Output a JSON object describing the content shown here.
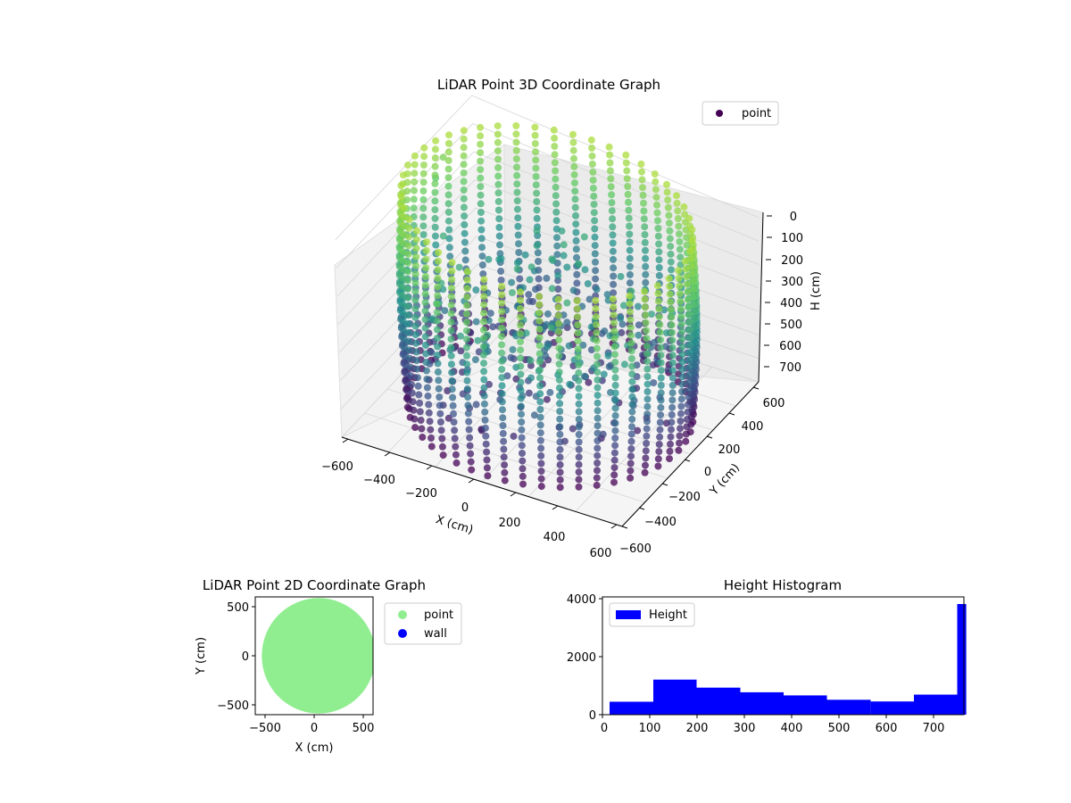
{
  "chart_data": [
    {
      "type": "scatter",
      "title": "LiDAR Point 3D Coordinate Graph",
      "xlabel": "X (cm)",
      "ylabel": "Y (cm)",
      "zlabel": "H (cm)",
      "xlim": [
        -600,
        600
      ],
      "ylim": [
        -600,
        600
      ],
      "zlim": [
        0,
        760
      ],
      "z_inverted": true,
      "xticks": [
        "−600",
        "−400",
        "−200",
        "0",
        "200",
        "400",
        "600"
      ],
      "yticks": [
        "−600",
        "−400",
        "−200",
        "0",
        "200",
        "400",
        "600"
      ],
      "zticks": [
        "0",
        "100",
        "200",
        "300",
        "400",
        "500",
        "600",
        "700"
      ],
      "colormap": "viridis",
      "legend": {
        "position": "upper-right",
        "entries": [
          {
            "name": "point",
            "color": "#440154"
          }
        ]
      },
      "grid": true,
      "structure": {
        "wall_radius": 550,
        "wall_height": 760,
        "columns": 48,
        "levels": 24,
        "outliers": [
          {
            "x": -590,
            "y": 250,
            "h": 560
          },
          {
            "x": -560,
            "y": 260,
            "h": 640
          }
        ]
      }
    },
    {
      "type": "scatter",
      "title": "LiDAR Point 2D Coordinate Graph",
      "xlabel": "X (cm)",
      "ylabel": "Y (cm)",
      "xlim": [
        -600,
        600
      ],
      "ylim": [
        -600,
        600
      ],
      "xticks": [
        "−500",
        "0",
        "500"
      ],
      "yticks": [
        "500",
        "0",
        "−500"
      ],
      "legend": {
        "position": "outside-right",
        "entries": [
          {
            "name": "point",
            "color": "#90ee90"
          },
          {
            "name": "wall",
            "color": "#0000ff"
          }
        ]
      },
      "series": [
        {
          "name": "point",
          "shape": "filled-disk",
          "radius": 570,
          "color": "#90ee90"
        }
      ]
    },
    {
      "type": "bar",
      "title": "Height Histogram",
      "xlim": [
        0,
        760
      ],
      "ylim": [
        0,
        4100
      ],
      "xticks": [
        "0",
        "100",
        "200",
        "300",
        "400",
        "500",
        "600",
        "700"
      ],
      "yticks": [
        "0",
        "2000",
        "4000"
      ],
      "legend": {
        "position": "upper-left",
        "entries": [
          {
            "name": "Height",
            "color": "#0000ff"
          }
        ]
      },
      "bar_color": "#0000ff",
      "bins": [
        {
          "from": 15,
          "to": 107,
          "count": 450
        },
        {
          "from": 107,
          "to": 198,
          "count": 1220
        },
        {
          "from": 198,
          "to": 290,
          "count": 940
        },
        {
          "from": 290,
          "to": 381,
          "count": 780
        },
        {
          "from": 381,
          "to": 472,
          "count": 670
        },
        {
          "from": 472,
          "to": 564,
          "count": 520
        },
        {
          "from": 564,
          "to": 655,
          "count": 460
        },
        {
          "from": 655,
          "to": 746,
          "count": 700
        },
        {
          "from": 746,
          "to": 765,
          "count": 3850
        }
      ]
    }
  ]
}
